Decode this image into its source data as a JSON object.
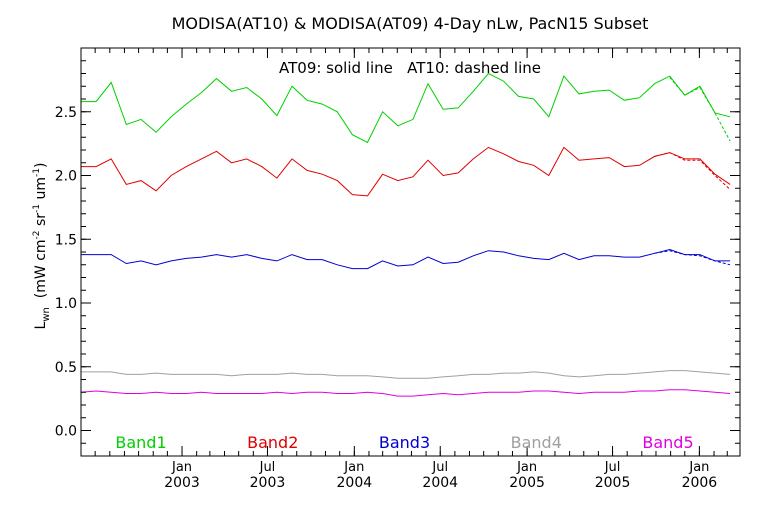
{
  "chart_data": {
    "type": "line",
    "title": "MODISA(AT10) & MODISA(AT09) 4-Day nLw, PacN15 Subset",
    "annotation": "AT09: solid line   AT10: dashed line",
    "ylabel_main": "L",
    "ylabel_sub": "wn",
    "ylabel_units": "(mW cm",
    "ylabel_exp1": "-2",
    "ylabel_mid": " sr",
    "ylabel_exp2": "-1",
    "ylabel_mid2": " um",
    "ylabel_exp3": "-1",
    "ylabel_end": ")",
    "ylim": [
      -0.2,
      3.0
    ],
    "xlim": [
      "2002-06-01",
      "2006-03-28"
    ],
    "yticks": [
      {
        "value": 0.0,
        "label": "0.0"
      },
      {
        "value": 0.5,
        "label": "0.5"
      },
      {
        "value": 1.0,
        "label": "1.0"
      },
      {
        "value": 1.5,
        "label": "1.5"
      },
      {
        "value": 2.0,
        "label": "2.0"
      },
      {
        "value": 2.5,
        "label": "2.5"
      }
    ],
    "xticks": [
      {
        "date": "2003-01-01",
        "month": "Jan",
        "year": "2003"
      },
      {
        "date": "2003-07-01",
        "month": "Jul",
        "year": "2003"
      },
      {
        "date": "2004-01-01",
        "month": "Jan",
        "year": "2004"
      },
      {
        "date": "2004-07-01",
        "month": "Jul",
        "year": "2004"
      },
      {
        "date": "2005-01-01",
        "month": "Jan",
        "year": "2005"
      },
      {
        "date": "2005-07-01",
        "month": "Jul",
        "year": "2005"
      },
      {
        "date": "2006-01-01",
        "month": "Jan",
        "year": "2006"
      }
    ],
    "grid": false,
    "x": [
      "2002-06-01",
      "2002-07-03",
      "2002-08-04",
      "2002-09-05",
      "2002-10-06",
      "2002-11-07",
      "2002-12-09",
      "2003-01-10",
      "2003-02-11",
      "2003-03-15",
      "2003-04-16",
      "2003-05-18",
      "2003-06-19",
      "2003-07-21",
      "2003-08-22",
      "2003-09-23",
      "2003-10-25",
      "2003-11-26",
      "2003-12-28",
      "2004-01-29",
      "2004-03-01",
      "2004-04-02",
      "2004-05-04",
      "2004-06-05",
      "2004-07-07",
      "2004-08-08",
      "2004-09-09",
      "2004-10-11",
      "2004-11-12",
      "2004-12-14",
      "2005-01-15",
      "2005-02-16",
      "2005-03-20",
      "2005-04-21",
      "2005-05-23",
      "2005-06-24",
      "2005-07-26",
      "2005-08-27",
      "2005-09-28",
      "2005-10-30",
      "2005-12-01",
      "2006-01-02",
      "2006-02-03",
      "2006-03-07"
    ],
    "series": [
      {
        "name": "Band1",
        "color": "#00d000",
        "style": "solid",
        "values": [
          2.58,
          2.58,
          2.73,
          2.4,
          2.44,
          2.34,
          2.46,
          2.56,
          2.65,
          2.76,
          2.66,
          2.69,
          2.6,
          2.47,
          2.7,
          2.59,
          2.56,
          2.5,
          2.32,
          2.26,
          2.5,
          2.39,
          2.44,
          2.72,
          2.52,
          2.53,
          2.66,
          2.8,
          2.74,
          2.62,
          2.6,
          2.46,
          2.78,
          2.64,
          2.66,
          2.67,
          2.59,
          2.61,
          2.72,
          2.78,
          2.63,
          2.7,
          2.49,
          2.46
        ]
      },
      {
        "name": "Band2",
        "color": "#e00000",
        "style": "solid",
        "values": [
          2.07,
          2.07,
          2.13,
          1.93,
          1.96,
          1.88,
          2.0,
          2.07,
          2.13,
          2.19,
          2.1,
          2.13,
          2.07,
          1.98,
          2.13,
          2.04,
          2.01,
          1.96,
          1.85,
          1.84,
          2.01,
          1.96,
          1.99,
          2.12,
          2.0,
          2.02,
          2.13,
          2.22,
          2.17,
          2.11,
          2.08,
          2.0,
          2.22,
          2.12,
          2.13,
          2.14,
          2.07,
          2.08,
          2.15,
          2.18,
          2.13,
          2.13,
          2.01,
          1.93
        ]
      },
      {
        "name": "Band3",
        "color": "#0000d0",
        "style": "solid",
        "values": [
          1.38,
          1.38,
          1.38,
          1.31,
          1.33,
          1.3,
          1.33,
          1.35,
          1.36,
          1.38,
          1.36,
          1.38,
          1.35,
          1.33,
          1.38,
          1.34,
          1.34,
          1.3,
          1.27,
          1.27,
          1.33,
          1.29,
          1.3,
          1.36,
          1.31,
          1.32,
          1.37,
          1.41,
          1.4,
          1.37,
          1.35,
          1.34,
          1.39,
          1.34,
          1.37,
          1.37,
          1.36,
          1.36,
          1.39,
          1.42,
          1.38,
          1.38,
          1.33,
          1.33
        ]
      },
      {
        "name": "Band4",
        "color": "#a0a0a0",
        "style": "solid",
        "values": [
          0.46,
          0.46,
          0.46,
          0.44,
          0.44,
          0.45,
          0.44,
          0.44,
          0.44,
          0.44,
          0.43,
          0.44,
          0.44,
          0.44,
          0.45,
          0.44,
          0.44,
          0.43,
          0.43,
          0.43,
          0.42,
          0.41,
          0.41,
          0.41,
          0.42,
          0.43,
          0.44,
          0.44,
          0.45,
          0.45,
          0.46,
          0.45,
          0.43,
          0.42,
          0.43,
          0.44,
          0.44,
          0.45,
          0.46,
          0.47,
          0.47,
          0.46,
          0.45,
          0.44
        ]
      },
      {
        "name": "Band5",
        "color": "#e000e0",
        "style": "solid",
        "values": [
          0.3,
          0.31,
          0.3,
          0.29,
          0.29,
          0.3,
          0.29,
          0.29,
          0.3,
          0.29,
          0.29,
          0.29,
          0.29,
          0.3,
          0.29,
          0.3,
          0.3,
          0.29,
          0.29,
          0.3,
          0.29,
          0.27,
          0.27,
          0.28,
          0.29,
          0.28,
          0.29,
          0.3,
          0.3,
          0.3,
          0.31,
          0.31,
          0.3,
          0.29,
          0.3,
          0.3,
          0.3,
          0.31,
          0.31,
          0.32,
          0.32,
          0.31,
          0.3,
          0.29
        ]
      }
    ],
    "dashed_series": [
      {
        "name": "Band2",
        "color": "#e00000",
        "style": "dashed",
        "x": [
          "2005-09-28",
          "2005-10-30",
          "2005-12-01",
          "2006-01-02",
          "2006-02-03",
          "2006-03-07"
        ],
        "values": [
          2.15,
          2.18,
          2.12,
          2.12,
          2.0,
          1.89
        ]
      },
      {
        "name": "Band3",
        "color": "#0000d0",
        "style": "dashed",
        "x": [
          "2005-09-28",
          "2005-10-30",
          "2005-12-01",
          "2006-01-02",
          "2006-02-03",
          "2006-03-07"
        ],
        "values": [
          1.39,
          1.41,
          1.38,
          1.37,
          1.33,
          1.3
        ]
      },
      {
        "name": "Band1",
        "color": "#00d000",
        "style": "dashed",
        "x": [
          "2005-10-30",
          "2005-12-01",
          "2006-01-02",
          "2006-02-03",
          "2006-03-07"
        ],
        "values": [
          2.77,
          2.63,
          2.69,
          2.49,
          2.27
        ]
      }
    ],
    "band_labels": [
      {
        "name": "Band1",
        "color": "#00d000"
      },
      {
        "name": "Band2",
        "color": "#e00000"
      },
      {
        "name": "Band3",
        "color": "#0000d0"
      },
      {
        "name": "Band4",
        "color": "#a0a0a0"
      },
      {
        "name": "Band5",
        "color": "#e000e0"
      }
    ]
  }
}
